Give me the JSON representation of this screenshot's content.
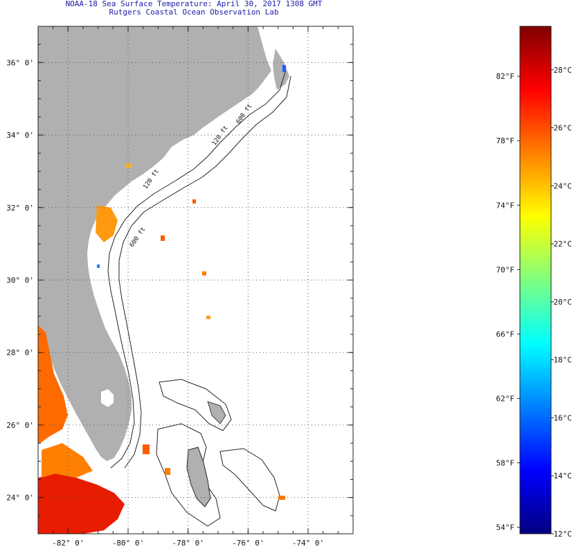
{
  "title": {
    "line1": "NOAA-18 Sea Surface Temperature:  April 30, 2017 1308 GMT",
    "line2": "Rutgers Coastal Ocean Observation Lab"
  },
  "map": {
    "lon_range": [
      -83,
      -72.5
    ],
    "lat_range": [
      23,
      37
    ],
    "lon_ticks": [
      {
        "value": -82,
        "label": "-82° 0'"
      },
      {
        "value": -80,
        "label": "-80° 0'"
      },
      {
        "value": -78,
        "label": "-78° 0'"
      },
      {
        "value": -76,
        "label": "-76° 0'"
      },
      {
        "value": -74,
        "label": "-74° 0'"
      }
    ],
    "lat_ticks": [
      {
        "value": 36,
        "label": "36° 0'"
      },
      {
        "value": 34,
        "label": "34° 0'"
      },
      {
        "value": 32,
        "label": "32° 0'"
      },
      {
        "value": 30,
        "label": "30° 0'"
      },
      {
        "value": 28,
        "label": "28° 0'"
      },
      {
        "value": 26,
        "label": "26° 0'"
      },
      {
        "value": 24,
        "label": "24° 0'"
      }
    ],
    "contour_labels": [
      {
        "text": "120 ft",
        "lon": -79.4,
        "lat": 32.5
      },
      {
        "text": "600 ft",
        "lon": -79.85,
        "lat": 30.9
      },
      {
        "text": "120 ft",
        "lon": -77.1,
        "lat": 33.7
      },
      {
        "text": "600 ft",
        "lon": -76.3,
        "lat": 34.3
      }
    ],
    "colors": {
      "land": "#b0b0b0",
      "ocean": "#ffffff",
      "grid": "#555555",
      "contour": "#222222",
      "warm": "#ff5a00",
      "hot": "#e81c00"
    }
  },
  "colorbar": {
    "temp_range_c": [
      12,
      29.5
    ],
    "f_labels": [
      {
        "value": 82,
        "label": "82°F"
      },
      {
        "value": 78,
        "label": "78°F"
      },
      {
        "value": 74,
        "label": "74°F"
      },
      {
        "value": 70,
        "label": "70°F"
      },
      {
        "value": 66,
        "label": "66°F"
      },
      {
        "value": 62,
        "label": "62°F"
      },
      {
        "value": 58,
        "label": "58°F"
      },
      {
        "value": 54,
        "label": "54°F"
      }
    ],
    "c_labels": [
      {
        "value": 28,
        "label": "28°C"
      },
      {
        "value": 26,
        "label": "26°C"
      },
      {
        "value": 24,
        "label": "24°C"
      },
      {
        "value": 22,
        "label": "22°C"
      },
      {
        "value": 20,
        "label": "20°C"
      },
      {
        "value": 18,
        "label": "18°C"
      },
      {
        "value": 16,
        "label": "16°C"
      },
      {
        "value": 14,
        "label": "14°C"
      },
      {
        "value": 12,
        "label": "12°C"
      }
    ],
    "gradient_stops": [
      "#00007f",
      "#0000ff",
      "#0080ff",
      "#00ffff",
      "#80ff80",
      "#ffff00",
      "#ff8000",
      "#ff0000",
      "#7f0000"
    ]
  }
}
